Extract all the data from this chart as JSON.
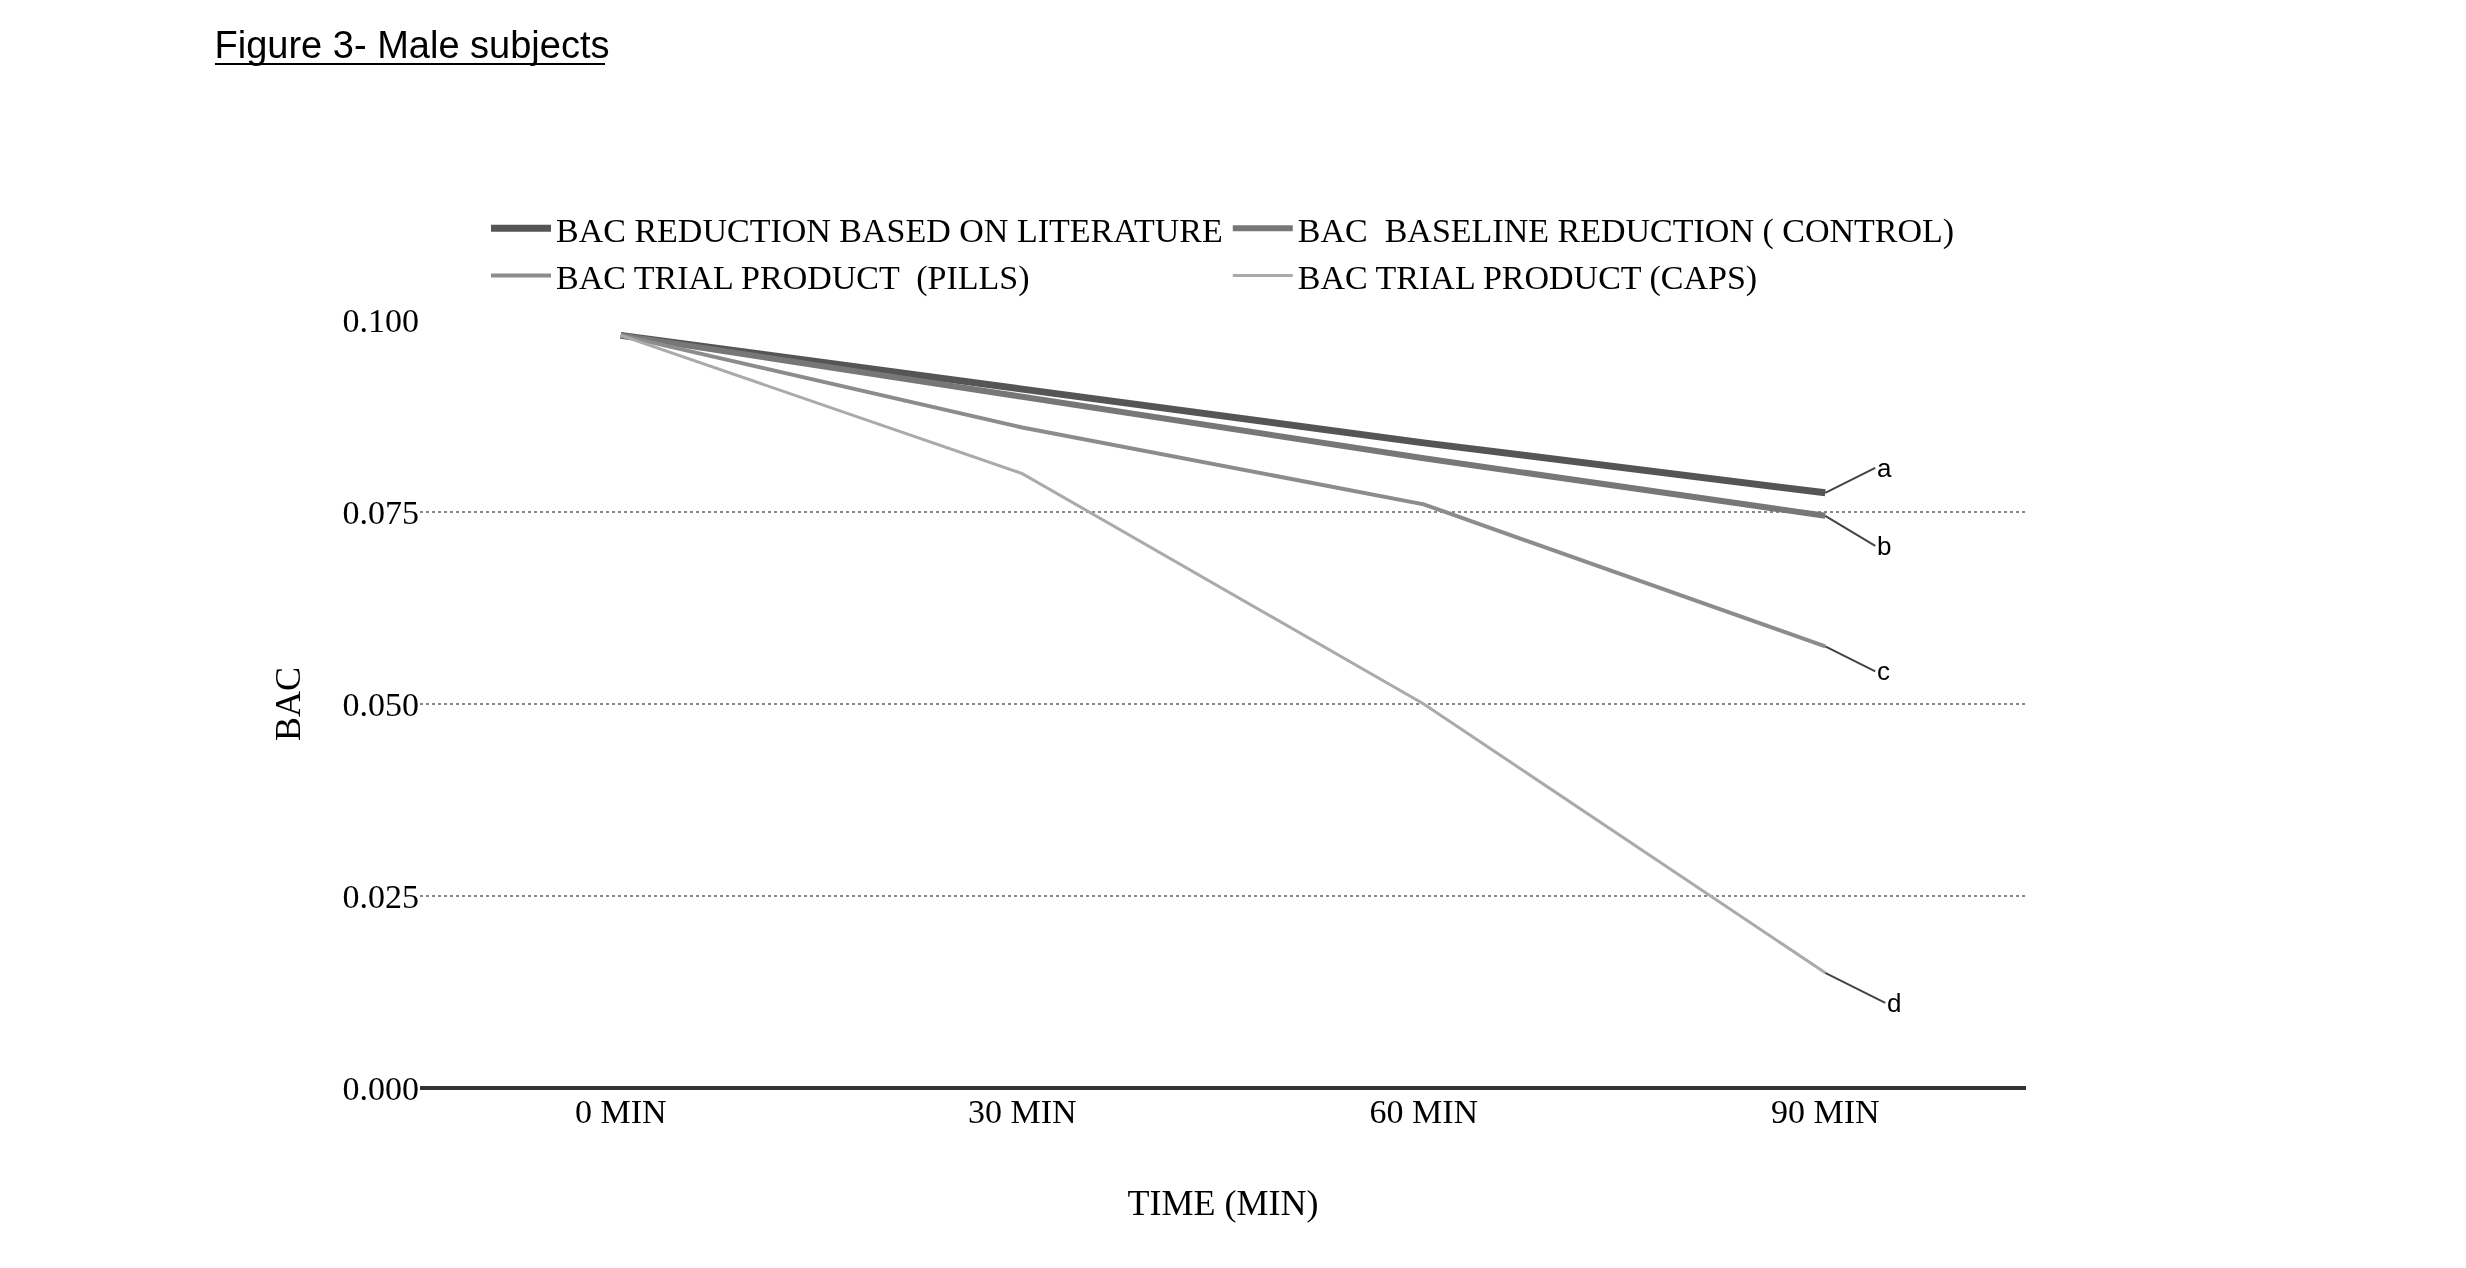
{
  "chart_data": {
    "type": "line",
    "title": "Figure 3- Male subjects",
    "xlabel": "TIME (MIN)",
    "ylabel": "BAC",
    "categories": [
      "0 MIN",
      "30 MIN",
      "60 MIN",
      "90 MIN"
    ],
    "series": [
      {
        "name": "BAC REDUCTION BASED ON LITERATURE",
        "color": "#555555",
        "values": [
          0.098,
          0.091,
          0.084,
          0.0775
        ]
      },
      {
        "name": "BAC  BASELINE REDUCTION ( CONTROL)",
        "color": "#777777",
        "values": [
          0.098,
          0.09,
          0.082,
          0.0745
        ]
      },
      {
        "name": "BAC TRIAL PRODUCT  (PILLS)",
        "color": "#8c8c8c",
        "values": [
          0.098,
          0.086,
          0.076,
          0.0575
        ]
      },
      {
        "name": "BAC TRIAL PRODUCT (CAPS)",
        "color": "#aaaaaa",
        "values": [
          0.098,
          0.08,
          0.05,
          0.015
        ]
      }
    ],
    "ylim": [
      0,
      0.1
    ],
    "yticks": [
      {
        "value": 0,
        "label": "0.000"
      },
      {
        "value": 0.025,
        "label": "0.025"
      },
      {
        "value": 0.05,
        "label": "0.050"
      },
      {
        "value": 0.075,
        "label": "0.075"
      },
      {
        "value": 0.1,
        "label": "0.100"
      }
    ],
    "grid": "y",
    "legend": "top",
    "marker": "none",
    "line_style": "solid",
    "annotations": [
      {
        "text": "a",
        "x": "90 MIN",
        "y": 0.0775
      },
      {
        "text": "b",
        "x": "90 MIN",
        "y": 0.0745
      },
      {
        "text": "c",
        "x": "90 MIN",
        "y": 0.0575
      },
      {
        "text": "d",
        "x": "90 MIN",
        "y": 0.015
      }
    ]
  }
}
